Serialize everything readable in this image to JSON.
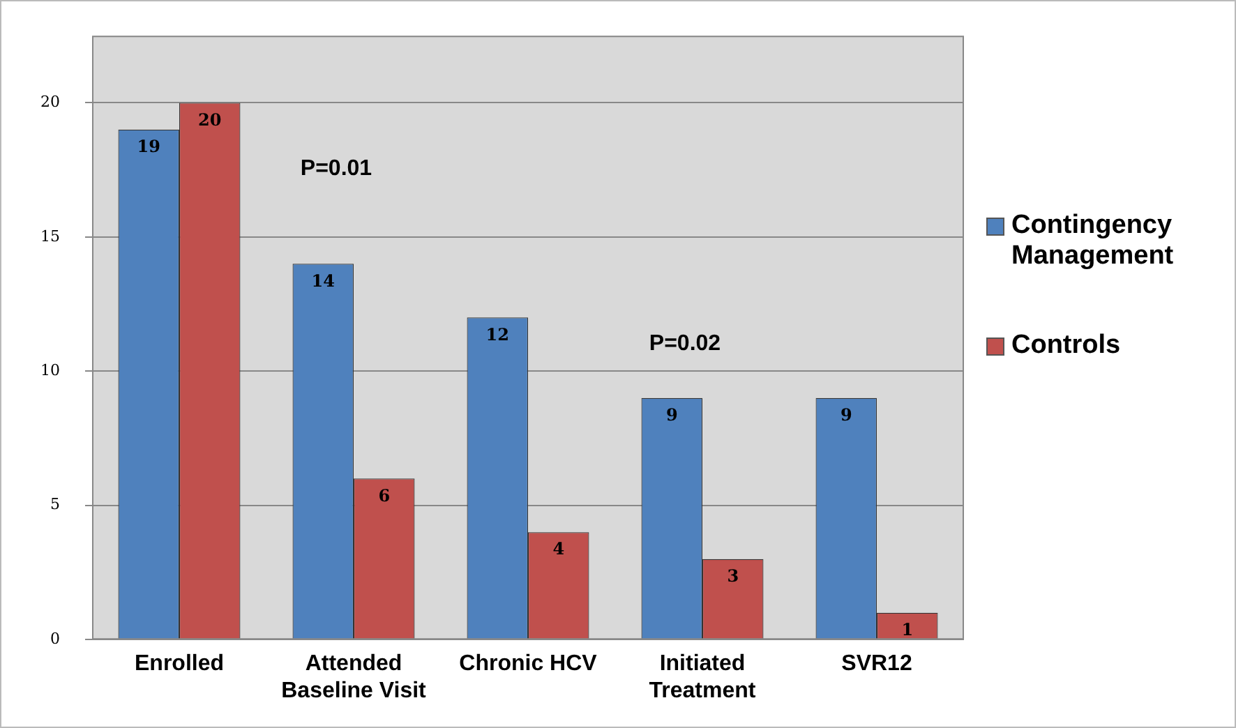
{
  "chart_data": {
    "type": "bar",
    "categories": [
      "Enrolled",
      "Attended Baseline Visit",
      "Chronic HCV",
      "Initiated Treatment",
      "SVR12"
    ],
    "series": [
      {
        "name": "Contingency Management",
        "color": "#4f81bd",
        "values": [
          19,
          14,
          12,
          9,
          9
        ]
      },
      {
        "name": "Controls",
        "color": "#c0504d",
        "values": [
          20,
          6,
          4,
          3,
          1
        ]
      }
    ],
    "ylim": [
      0,
      22.5
    ],
    "yticks": [
      0,
      5,
      10,
      15,
      20
    ],
    "grid": "y",
    "legend": "right",
    "data_labels": true,
    "annotations": [
      "P=0.01",
      "P=0.02"
    ]
  }
}
